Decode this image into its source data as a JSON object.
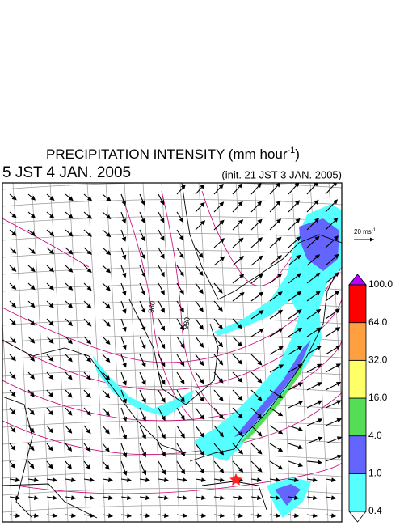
{
  "header": {
    "title": "PRECIPITATION INTENSITY (mm hour",
    "title_sup": "-1",
    "title_end": ")",
    "valid_time": "5 JST 4 JAN. 2005",
    "init_time": "(init. 21 JST 3 JAN. 2005)"
  },
  "vector_scale": {
    "label": "20 ms",
    "label_sup": "-1"
  },
  "colorbar": {
    "labels": [
      "0.4",
      "1.0",
      "4.0",
      "16.0",
      "32.0",
      "64.0",
      "100.0"
    ],
    "colors": [
      "#55ffff",
      "#6464ff",
      "#55dd55",
      "#ffff66",
      "#ffa040",
      "#ff0000"
    ],
    "under_color": "#ffffff",
    "over_color": "#b400ff"
  },
  "contour_labels": [
    "980",
    "980"
  ]
}
